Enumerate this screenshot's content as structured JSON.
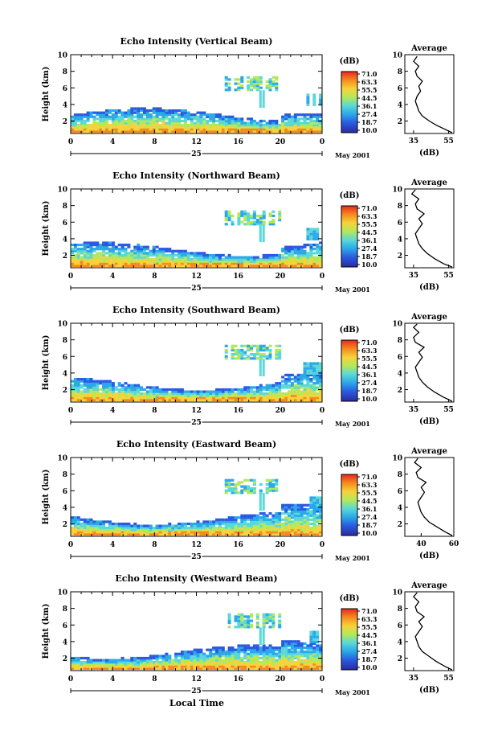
{
  "common": {
    "ylabel": "Height (km)",
    "y_ticks": [
      "2",
      "4",
      "6",
      "8",
      "10"
    ],
    "x_ticks": [
      "0",
      "4",
      "8",
      "12",
      "16",
      "20",
      "0"
    ],
    "date_day": "25",
    "date_label": "May 2001",
    "colorbar_unit": "(dB)",
    "colorbar_ticks": [
      "71.0",
      "63.3",
      "55.5",
      "44.5",
      "36.1",
      "27.4",
      "18.7",
      "10.0"
    ],
    "colorbar_colors": [
      "#e8281e",
      "#f58a1e",
      "#f7d23a",
      "#b4e85a",
      "#5ad8d8",
      "#2aa8e8",
      "#2a5ae0",
      "#2a2aa0"
    ],
    "avg_title": "Average",
    "avg_unit": "(dB)",
    "xlabel": "Local Time"
  },
  "chart_data": [
    {
      "type": "heatmap",
      "title": "Echo Intensity (Vertical Beam)",
      "ylabel": "Height (km)",
      "ylim": [
        0.5,
        10
      ],
      "xlim": [
        0,
        24
      ],
      "average": {
        "type": "line",
        "xlim": [
          30,
          58
        ],
        "x_ticks": [
          "35",
          "55"
        ],
        "profile": [
          [
            57,
            0.6
          ],
          [
            53,
            1.0
          ],
          [
            48,
            1.5
          ],
          [
            44,
            2.0
          ],
          [
            40,
            2.6
          ],
          [
            38,
            3.2
          ],
          [
            37,
            3.8
          ],
          [
            36,
            4.4
          ],
          [
            37,
            5.0
          ],
          [
            39,
            5.6
          ],
          [
            38,
            6.2
          ],
          [
            40,
            6.8
          ],
          [
            37,
            7.4
          ],
          [
            36,
            8.0
          ],
          [
            38,
            8.6
          ],
          [
            35,
            9.2
          ],
          [
            37,
            9.8
          ]
        ]
      }
    },
    {
      "type": "heatmap",
      "title": "Echo Intensity (Northward Beam)",
      "ylabel": "Height (km)",
      "ylim": [
        0.5,
        10
      ],
      "xlim": [
        0,
        24
      ],
      "average": {
        "type": "line",
        "xlim": [
          30,
          58
        ],
        "x_ticks": [
          "35",
          "55"
        ],
        "profile": [
          [
            57,
            0.6
          ],
          [
            52,
            1.0
          ],
          [
            47,
            1.6
          ],
          [
            43,
            2.2
          ],
          [
            40,
            2.8
          ],
          [
            38,
            3.4
          ],
          [
            37,
            4.0
          ],
          [
            36,
            4.6
          ],
          [
            38,
            5.2
          ],
          [
            40,
            5.8
          ],
          [
            38,
            6.4
          ],
          [
            41,
            7.0
          ],
          [
            37,
            7.6
          ],
          [
            36,
            8.2
          ],
          [
            38,
            8.8
          ],
          [
            34,
            9.4
          ],
          [
            36,
            9.9
          ]
        ]
      }
    },
    {
      "type": "heatmap",
      "title": "Echo Intensity (Southward Beam)",
      "ylabel": "Height (km)",
      "ylim": [
        0.5,
        10
      ],
      "xlim": [
        0,
        24
      ],
      "average": {
        "type": "line",
        "xlim": [
          30,
          58
        ],
        "x_ticks": [
          "35",
          "55"
        ],
        "profile": [
          [
            57,
            0.6
          ],
          [
            52,
            1.1
          ],
          [
            47,
            1.7
          ],
          [
            43,
            2.3
          ],
          [
            40,
            2.9
          ],
          [
            38,
            3.5
          ],
          [
            37,
            4.1
          ],
          [
            36,
            4.7
          ],
          [
            38,
            5.3
          ],
          [
            40,
            5.9
          ],
          [
            38,
            6.5
          ],
          [
            41,
            7.1
          ],
          [
            36,
            7.7
          ],
          [
            35,
            8.3
          ],
          [
            38,
            8.9
          ],
          [
            35,
            9.5
          ],
          [
            37,
            9.9
          ]
        ]
      }
    },
    {
      "type": "heatmap",
      "title": "Echo Intensity (Eastward Beam)",
      "ylabel": "Height (km)",
      "ylim": [
        0.5,
        10
      ],
      "xlim": [
        0,
        24
      ],
      "average": {
        "type": "line",
        "xlim": [
          30,
          60
        ],
        "x_ticks": [
          "40",
          "60"
        ],
        "profile": [
          [
            59,
            0.6
          ],
          [
            55,
            1.0
          ],
          [
            50,
            1.6
          ],
          [
            45,
            2.2
          ],
          [
            42,
            2.8
          ],
          [
            40,
            3.4
          ],
          [
            39,
            4.0
          ],
          [
            38,
            4.6
          ],
          [
            40,
            5.2
          ],
          [
            42,
            5.8
          ],
          [
            40,
            6.4
          ],
          [
            43,
            7.0
          ],
          [
            38,
            7.6
          ],
          [
            37,
            8.2
          ],
          [
            40,
            8.8
          ],
          [
            36,
            9.4
          ],
          [
            38,
            9.9
          ]
        ]
      }
    },
    {
      "type": "heatmap",
      "title": "Echo Intensity (Westward Beam)",
      "ylabel": "Height (km)",
      "ylim": [
        0.5,
        10
      ],
      "xlim": [
        0,
        24
      ],
      "average": {
        "type": "line",
        "xlim": [
          30,
          58
        ],
        "x_ticks": [
          "35",
          "55"
        ],
        "profile": [
          [
            57,
            0.6
          ],
          [
            53,
            1.0
          ],
          [
            48,
            1.6
          ],
          [
            44,
            2.2
          ],
          [
            40,
            2.8
          ],
          [
            38,
            3.4
          ],
          [
            37,
            4.0
          ],
          [
            36,
            4.6
          ],
          [
            38,
            5.2
          ],
          [
            40,
            5.8
          ],
          [
            38,
            6.4
          ],
          [
            41,
            7.0
          ],
          [
            37,
            7.6
          ],
          [
            36,
            8.2
          ],
          [
            38,
            8.8
          ],
          [
            35,
            9.4
          ],
          [
            37,
            9.9
          ]
        ]
      }
    }
  ]
}
